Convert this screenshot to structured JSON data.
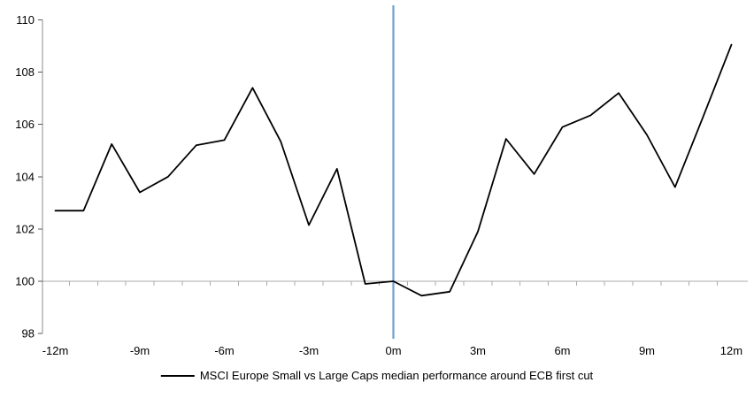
{
  "chart": {
    "colors": {
      "series_line": "#000000",
      "event_line": "#6FA0CB",
      "gridline": "#ABABAB",
      "axis_line": "#8C8C8C",
      "tick_mark": "#595959",
      "label_text": "#000000",
      "background": "#FFFFFF"
    }
  },
  "chart_data": {
    "type": "line",
    "title": "",
    "xlabel": "",
    "ylabel": "",
    "x": [
      -12,
      -11,
      -10,
      -9,
      -8,
      -7,
      -6,
      -5,
      -4,
      -3,
      -2,
      -1,
      0,
      1,
      2,
      3,
      4,
      5,
      6,
      7,
      8,
      9,
      10,
      11,
      12
    ],
    "series": [
      {
        "name": "MSCI Europe Small vs Large Caps median performance around ECB first cut",
        "values": [
          102.7,
          102.7,
          105.25,
          103.4,
          104.0,
          105.2,
          105.4,
          107.4,
          105.35,
          102.15,
          104.3,
          99.9,
          100.0,
          99.45,
          99.6,
          101.9,
          105.45,
          104.1,
          105.9,
          106.35,
          107.2,
          105.6,
          103.6,
          106.3,
          109.05
        ]
      }
    ],
    "x_tick_positions": [
      -12,
      -9,
      -6,
      -3,
      0,
      3,
      6,
      9,
      12
    ],
    "x_tick_labels": [
      "-12m",
      "-9m",
      "-6m",
      "-3m",
      "0m",
      "3m",
      "6m",
      "9m",
      "12m"
    ],
    "y_ticks": [
      98,
      100,
      102,
      104,
      106,
      108,
      110
    ],
    "ylim": [
      98,
      110
    ],
    "xlim": [
      -12,
      12
    ],
    "baseline_value": 100,
    "event_line_x": 0,
    "grid": "horizontal-baseline-only",
    "legend_position": "bottom-center"
  }
}
